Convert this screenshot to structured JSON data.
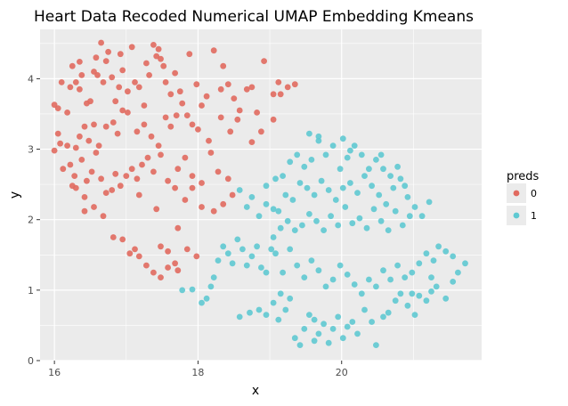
{
  "chart_data": {
    "type": "scatter",
    "title": "Heart Data Recoded Numerical UMAP Embedding Kmeans",
    "xlabel": "x",
    "ylabel": "y",
    "xlim": [
      15.8,
      21.95
    ],
    "ylim": [
      0,
      4.7
    ],
    "x_ticks": [
      16,
      18,
      20
    ],
    "y_ticks": [
      0,
      1,
      2,
      3,
      4
    ],
    "x_tick_labels": [
      "16",
      "18",
      "20"
    ],
    "y_tick_labels": [
      "0",
      "1",
      "2",
      "3",
      "4"
    ],
    "grid": true,
    "legend": {
      "title": "preds",
      "placement": "right"
    },
    "series": [
      {
        "name": "0",
        "color": "#E16A5F",
        "points": [
          [
            16.0,
            3.63
          ],
          [
            16.05,
            3.58
          ],
          [
            16.1,
            3.95
          ],
          [
            16.18,
            3.52
          ],
          [
            16.22,
            3.88
          ],
          [
            16.25,
            4.18
          ],
          [
            16.3,
            3.95
          ],
          [
            16.35,
            4.24
          ],
          [
            16.38,
            4.05
          ],
          [
            16.35,
            3.85
          ],
          [
            16.45,
            3.65
          ],
          [
            16.5,
            3.68
          ],
          [
            16.55,
            4.1
          ],
          [
            16.58,
            4.3
          ],
          [
            16.6,
            4.05
          ],
          [
            16.65,
            4.51
          ],
          [
            16.68,
            3.95
          ],
          [
            16.72,
            4.25
          ],
          [
            16.75,
            4.38
          ],
          [
            16.8,
            4.02
          ],
          [
            16.85,
            3.68
          ],
          [
            16.9,
            3.88
          ],
          [
            16.92,
            4.35
          ],
          [
            16.95,
            4.12
          ],
          [
            17.02,
            3.82
          ],
          [
            17.08,
            4.45
          ],
          [
            17.12,
            3.95
          ],
          [
            17.18,
            3.88
          ],
          [
            17.25,
            3.62
          ],
          [
            17.28,
            4.22
          ],
          [
            17.32,
            4.05
          ],
          [
            17.38,
            4.48
          ],
          [
            17.42,
            4.32
          ],
          [
            17.45,
            4.42
          ],
          [
            17.48,
            4.28
          ],
          [
            17.52,
            4.18
          ],
          [
            17.55,
            3.95
          ],
          [
            17.62,
            3.78
          ],
          [
            17.68,
            4.08
          ],
          [
            17.75,
            3.82
          ],
          [
            17.88,
            4.35
          ],
          [
            17.98,
            3.92
          ],
          [
            18.05,
            3.62
          ],
          [
            18.12,
            3.75
          ],
          [
            18.22,
            4.4
          ],
          [
            18.32,
            3.85
          ],
          [
            18.35,
            4.18
          ],
          [
            18.42,
            3.92
          ],
          [
            18.5,
            3.72
          ],
          [
            18.58,
            3.55
          ],
          [
            18.68,
            3.85
          ],
          [
            18.75,
            3.88
          ],
          [
            18.82,
            3.52
          ],
          [
            18.92,
            4.25
          ],
          [
            19.05,
            3.78
          ],
          [
            19.12,
            3.95
          ],
          [
            19.15,
            3.78
          ],
          [
            19.25,
            3.88
          ],
          [
            19.35,
            3.92
          ],
          [
            19.05,
            3.42
          ],
          [
            18.88,
            3.25
          ],
          [
            18.75,
            3.1
          ],
          [
            18.55,
            3.42
          ],
          [
            18.45,
            3.25
          ],
          [
            18.32,
            3.45
          ],
          [
            18.15,
            3.12
          ],
          [
            18.0,
            3.28
          ],
          [
            17.92,
            3.35
          ],
          [
            17.85,
            3.48
          ],
          [
            17.78,
            3.65
          ],
          [
            17.7,
            3.48
          ],
          [
            17.62,
            3.32
          ],
          [
            17.55,
            3.45
          ],
          [
            17.45,
            3.05
          ],
          [
            17.35,
            3.18
          ],
          [
            17.25,
            3.35
          ],
          [
            17.15,
            3.25
          ],
          [
            17.02,
            3.52
          ],
          [
            16.95,
            3.55
          ],
          [
            16.88,
            3.22
          ],
          [
            16.82,
            3.38
          ],
          [
            16.72,
            3.32
          ],
          [
            16.62,
            3.05
          ],
          [
            16.55,
            3.35
          ],
          [
            16.48,
            3.12
          ],
          [
            16.42,
            3.32
          ],
          [
            16.35,
            3.18
          ],
          [
            16.3,
            3.02
          ],
          [
            16.18,
            3.05
          ],
          [
            16.08,
            3.08
          ],
          [
            16.05,
            3.22
          ],
          [
            16.0,
            2.98
          ],
          [
            16.12,
            2.72
          ],
          [
            16.22,
            2.78
          ],
          [
            16.28,
            2.62
          ],
          [
            16.38,
            2.85
          ],
          [
            16.45,
            2.55
          ],
          [
            16.52,
            2.68
          ],
          [
            16.58,
            2.95
          ],
          [
            16.65,
            2.58
          ],
          [
            16.72,
            2.38
          ],
          [
            16.8,
            2.42
          ],
          [
            16.85,
            2.65
          ],
          [
            16.92,
            2.48
          ],
          [
            17.0,
            2.62
          ],
          [
            17.08,
            2.72
          ],
          [
            17.15,
            2.58
          ],
          [
            17.22,
            2.78
          ],
          [
            17.3,
            2.88
          ],
          [
            17.38,
            2.68
          ],
          [
            17.48,
            2.92
          ],
          [
            17.58,
            2.55
          ],
          [
            17.68,
            2.45
          ],
          [
            17.72,
            2.72
          ],
          [
            17.82,
            2.88
          ],
          [
            17.92,
            2.62
          ],
          [
            18.05,
            2.52
          ],
          [
            18.18,
            2.95
          ],
          [
            18.28,
            2.68
          ],
          [
            18.42,
            2.58
          ],
          [
            18.48,
            2.35
          ],
          [
            18.35,
            2.22
          ],
          [
            18.22,
            2.12
          ],
          [
            18.05,
            2.18
          ],
          [
            17.92,
            2.45
          ],
          [
            17.82,
            2.28
          ],
          [
            17.72,
            1.88
          ],
          [
            17.58,
            1.55
          ],
          [
            17.48,
            1.62
          ],
          [
            17.38,
            1.25
          ],
          [
            17.28,
            1.35
          ],
          [
            17.18,
            1.48
          ],
          [
            17.12,
            1.58
          ],
          [
            17.05,
            1.52
          ],
          [
            16.95,
            1.72
          ],
          [
            16.82,
            1.75
          ],
          [
            16.68,
            2.05
          ],
          [
            16.55,
            2.18
          ],
          [
            16.42,
            2.32
          ],
          [
            16.3,
            2.45
          ],
          [
            16.25,
            2.48
          ],
          [
            16.42,
            2.12
          ],
          [
            17.18,
            2.35
          ],
          [
            17.42,
            2.15
          ],
          [
            17.58,
            1.32
          ],
          [
            17.72,
            1.28
          ],
          [
            17.98,
            1.48
          ],
          [
            17.85,
            1.58
          ],
          [
            17.68,
            1.38
          ],
          [
            17.48,
            1.18
          ]
        ]
      },
      {
        "name": "1",
        "color": "#5FC9D2",
        "points": [
          [
            17.78,
            1.0
          ],
          [
            17.92,
            1.01
          ],
          [
            18.05,
            0.82
          ],
          [
            18.12,
            0.88
          ],
          [
            18.18,
            1.05
          ],
          [
            18.22,
            1.18
          ],
          [
            18.28,
            1.42
          ],
          [
            18.35,
            1.62
          ],
          [
            18.42,
            1.52
          ],
          [
            18.48,
            1.38
          ],
          [
            18.55,
            1.72
          ],
          [
            18.62,
            1.58
          ],
          [
            18.68,
            1.35
          ],
          [
            18.75,
            1.48
          ],
          [
            18.82,
            1.62
          ],
          [
            18.88,
            1.32
          ],
          [
            18.95,
            1.25
          ],
          [
            19.02,
            1.58
          ],
          [
            19.05,
            1.75
          ],
          [
            19.08,
            1.52
          ],
          [
            18.58,
            0.62
          ],
          [
            18.72,
            0.68
          ],
          [
            18.85,
            0.72
          ],
          [
            18.95,
            0.65
          ],
          [
            19.05,
            0.82
          ],
          [
            19.12,
            0.58
          ],
          [
            19.15,
            0.95
          ],
          [
            19.22,
            0.72
          ],
          [
            19.28,
            0.88
          ],
          [
            19.35,
            0.32
          ],
          [
            19.42,
            0.22
          ],
          [
            19.48,
            0.45
          ],
          [
            19.55,
            0.65
          ],
          [
            19.62,
            0.58
          ],
          [
            19.68,
            0.38
          ],
          [
            19.75,
            0.52
          ],
          [
            19.82,
            0.25
          ],
          [
            19.88,
            0.45
          ],
          [
            19.95,
            0.62
          ],
          [
            20.02,
            0.32
          ],
          [
            20.08,
            0.48
          ],
          [
            20.15,
            0.55
          ],
          [
            20.22,
            0.38
          ],
          [
            20.32,
            0.72
          ],
          [
            20.42,
            0.55
          ],
          [
            20.48,
            0.22
          ],
          [
            20.58,
            0.62
          ],
          [
            20.65,
            0.68
          ],
          [
            20.75,
            0.85
          ],
          [
            20.82,
            0.95
          ],
          [
            20.92,
            0.78
          ],
          [
            21.02,
            0.65
          ],
          [
            21.08,
            0.92
          ],
          [
            21.18,
            0.85
          ],
          [
            21.25,
            0.98
          ],
          [
            21.32,
            1.05
          ],
          [
            21.45,
            0.88
          ],
          [
            21.55,
            1.12
          ],
          [
            21.62,
            1.25
          ],
          [
            21.72,
            1.38
          ],
          [
            21.55,
            1.48
          ],
          [
            21.45,
            1.55
          ],
          [
            21.35,
            1.62
          ],
          [
            21.28,
            1.42
          ],
          [
            21.18,
            1.52
          ],
          [
            21.08,
            1.38
          ],
          [
            20.98,
            1.25
          ],
          [
            20.88,
            1.18
          ],
          [
            20.78,
            1.35
          ],
          [
            20.68,
            1.15
          ],
          [
            20.58,
            1.28
          ],
          [
            20.48,
            1.05
          ],
          [
            20.38,
            1.15
          ],
          [
            20.28,
            0.95
          ],
          [
            20.18,
            1.08
          ],
          [
            20.08,
            1.22
          ],
          [
            19.98,
            1.35
          ],
          [
            19.88,
            1.15
          ],
          [
            19.78,
            1.05
          ],
          [
            19.68,
            1.28
          ],
          [
            19.58,
            1.42
          ],
          [
            19.48,
            1.18
          ],
          [
            19.38,
            1.35
          ],
          [
            19.28,
            1.58
          ],
          [
            19.18,
            1.25
          ],
          [
            19.12,
            2.12
          ],
          [
            19.22,
            2.35
          ],
          [
            19.32,
            2.28
          ],
          [
            19.42,
            2.52
          ],
          [
            19.52,
            2.45
          ],
          [
            19.62,
            2.35
          ],
          [
            19.72,
            2.55
          ],
          [
            19.82,
            2.42
          ],
          [
            19.92,
            2.28
          ],
          [
            20.02,
            2.45
          ],
          [
            20.12,
            2.52
          ],
          [
            20.22,
            2.38
          ],
          [
            20.32,
            2.62
          ],
          [
            20.42,
            2.48
          ],
          [
            20.52,
            2.35
          ],
          [
            20.62,
            2.22
          ],
          [
            20.72,
            2.45
          ],
          [
            20.82,
            2.58
          ],
          [
            20.92,
            2.32
          ],
          [
            21.02,
            2.18
          ],
          [
            21.12,
            2.05
          ],
          [
            21.22,
            2.25
          ],
          [
            20.95,
            2.05
          ],
          [
            20.85,
            1.92
          ],
          [
            20.75,
            2.12
          ],
          [
            20.65,
            1.85
          ],
          [
            20.55,
            1.98
          ],
          [
            20.45,
            2.15
          ],
          [
            20.35,
            1.88
          ],
          [
            20.25,
            2.02
          ],
          [
            20.15,
            1.95
          ],
          [
            20.05,
            2.18
          ],
          [
            19.95,
            1.92
          ],
          [
            19.85,
            2.05
          ],
          [
            19.75,
            1.85
          ],
          [
            19.65,
            1.98
          ],
          [
            19.55,
            2.08
          ],
          [
            19.45,
            1.92
          ],
          [
            19.35,
            1.85
          ],
          [
            19.25,
            1.98
          ],
          [
            19.15,
            1.88
          ],
          [
            19.05,
            2.15
          ],
          [
            18.95,
            2.22
          ],
          [
            18.85,
            2.05
          ],
          [
            18.75,
            2.32
          ],
          [
            18.68,
            2.18
          ],
          [
            18.58,
            2.42
          ],
          [
            19.18,
            2.62
          ],
          [
            19.28,
            2.82
          ],
          [
            19.38,
            2.92
          ],
          [
            19.48,
            2.75
          ],
          [
            19.58,
            2.85
          ],
          [
            19.68,
            3.12
          ],
          [
            19.78,
            2.92
          ],
          [
            19.88,
            3.05
          ],
          [
            19.98,
            2.72
          ],
          [
            20.08,
            2.88
          ],
          [
            20.18,
            3.05
          ],
          [
            20.28,
            2.92
          ],
          [
            20.38,
            2.72
          ],
          [
            20.48,
            2.85
          ],
          [
            20.58,
            2.72
          ],
          [
            20.68,
            2.62
          ],
          [
            20.78,
            2.75
          ],
          [
            20.88,
            2.48
          ],
          [
            19.55,
            3.22
          ],
          [
            19.68,
            3.18
          ],
          [
            20.02,
            3.15
          ],
          [
            20.12,
            2.98
          ],
          [
            20.55,
            2.92
          ],
          [
            18.95,
            2.48
          ],
          [
            19.08,
            2.58
          ],
          [
            19.62,
            0.28
          ],
          [
            20.98,
            0.95
          ],
          [
            21.25,
            1.18
          ]
        ]
      }
    ]
  }
}
